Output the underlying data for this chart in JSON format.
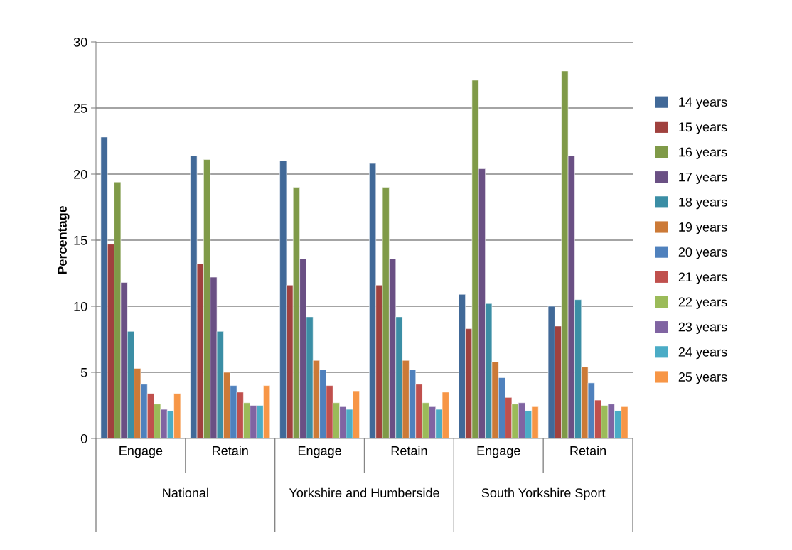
{
  "chart_data": {
    "type": "bar",
    "ylabel": "Percentage",
    "categories": [
      "Engage",
      "Retain",
      "Engage",
      "Retain",
      "Engage",
      "Retain"
    ],
    "annotations": [
      "National",
      "Yorkshire and Humberside",
      "South Yorkshire Sport"
    ],
    "ylim": [
      0,
      30
    ],
    "yticks": [
      0,
      5,
      10,
      15,
      20,
      25,
      30
    ],
    "grid": "y",
    "legend": "right",
    "series": [
      {
        "name": "14 years",
        "color": "#416998",
        "values": [
          22.8,
          21.4,
          21.0,
          20.8,
          10.9,
          10.0
        ]
      },
      {
        "name": "15 years",
        "color": "#a0413e",
        "values": [
          14.7,
          13.2,
          11.6,
          11.6,
          8.3,
          8.5
        ]
      },
      {
        "name": "16 years",
        "color": "#7f9a48",
        "values": [
          19.4,
          21.1,
          19.0,
          19.0,
          27.1,
          27.8
        ]
      },
      {
        "name": "17 years",
        "color": "#6a5084",
        "values": [
          11.8,
          12.2,
          13.6,
          13.6,
          20.4,
          21.4
        ]
      },
      {
        "name": "18 years",
        "color": "#3b8ea5",
        "values": [
          8.1,
          8.1,
          9.2,
          9.2,
          10.2,
          10.5
        ]
      },
      {
        "name": "19 years",
        "color": "#cc7a37",
        "values": [
          5.3,
          5.0,
          5.9,
          5.9,
          5.8,
          5.4
        ]
      },
      {
        "name": "20 years",
        "color": "#4f81bd",
        "values": [
          4.1,
          4.0,
          5.2,
          5.2,
          4.6,
          4.2
        ]
      },
      {
        "name": "21 years",
        "color": "#c0504d",
        "values": [
          3.4,
          3.5,
          4.0,
          4.1,
          3.1,
          2.9
        ]
      },
      {
        "name": "22 years",
        "color": "#9bbb59",
        "values": [
          2.6,
          2.7,
          2.7,
          2.7,
          2.6,
          2.5
        ]
      },
      {
        "name": "23 years",
        "color": "#8064a2",
        "values": [
          2.2,
          2.5,
          2.4,
          2.4,
          2.7,
          2.6
        ]
      },
      {
        "name": "24 years",
        "color": "#4bacc6",
        "values": [
          2.1,
          2.5,
          2.2,
          2.2,
          2.1,
          2.1
        ]
      },
      {
        "name": "25 years",
        "color": "#f79646",
        "values": [
          3.4,
          4.0,
          3.6,
          3.5,
          2.4,
          2.4
        ]
      }
    ]
  }
}
